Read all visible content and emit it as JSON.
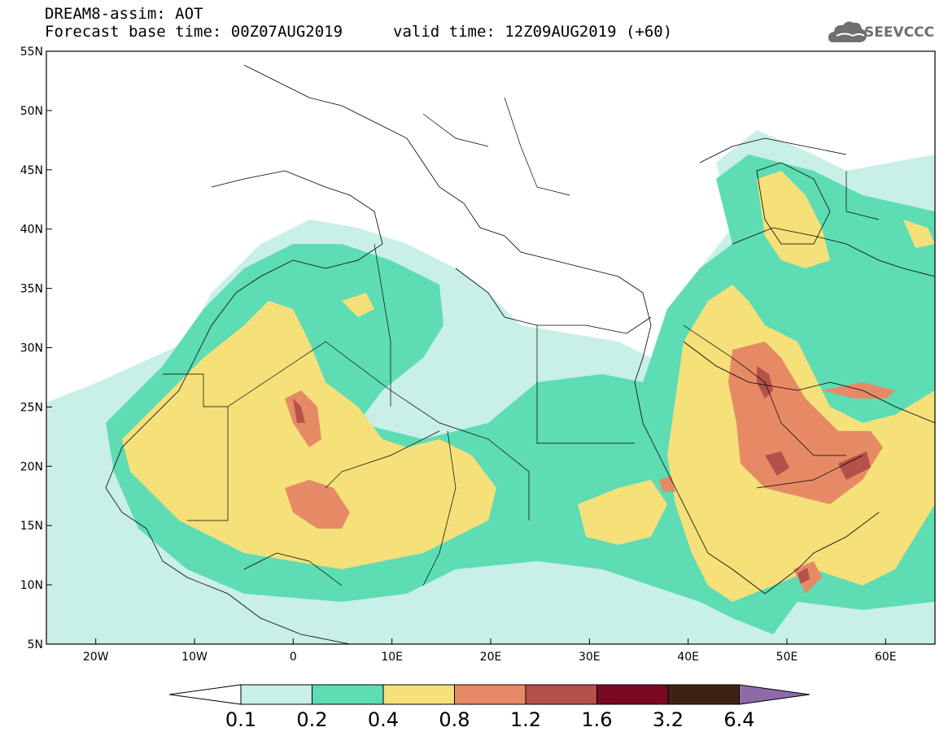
{
  "header": {
    "title": "DREAM8-assim: AOT",
    "base_time": "Forecast base time: 00Z07AUG2019",
    "valid_time": "valid time: 12Z09AUG2019 (+60)"
  },
  "logo": {
    "text": "SEEVCCC",
    "icon": "cloud-icon"
  },
  "map": {
    "lon_range": [
      -25,
      65
    ],
    "lat_range": [
      5,
      55
    ],
    "lat_ticks": [
      "55N",
      "50N",
      "45N",
      "40N",
      "35N",
      "30N",
      "25N",
      "20N",
      "15N",
      "10N",
      "5N"
    ],
    "lon_ticks": [
      "20W",
      "10W",
      "0",
      "10E",
      "20E",
      "30E",
      "40E",
      "50E",
      "60E"
    ],
    "variable": "AOT"
  },
  "colorbar": {
    "labels": [
      "0.1",
      "0.2",
      "0.4",
      "0.8",
      "1.2",
      "1.6",
      "3.2",
      "6.4"
    ],
    "colors": [
      "#ffffff",
      "#c8efe8",
      "#5edcb4",
      "#f5e07a",
      "#e68a66",
      "#b5504a",
      "#7a0a22",
      "#3f2312",
      "#8e6aa8"
    ]
  }
}
